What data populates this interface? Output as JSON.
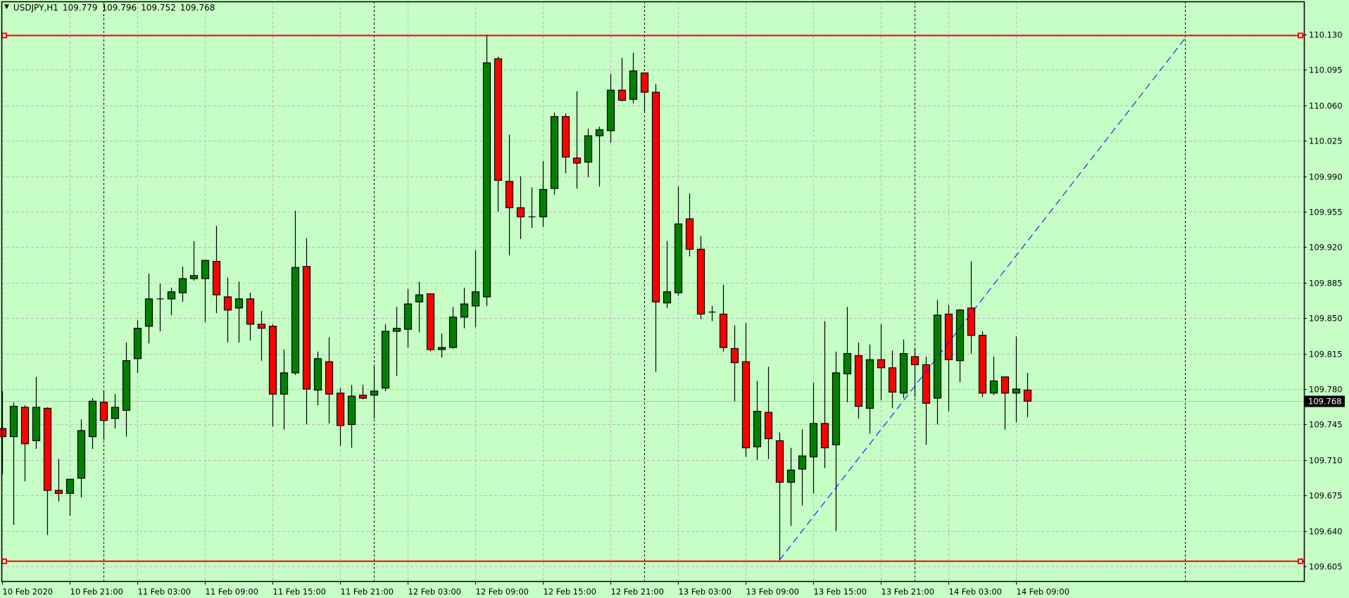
{
  "header": {
    "symbol_period": "USDJPY,H1",
    "open": "109.779",
    "high": "109.796",
    "low": "109.752",
    "close": "109.768",
    "menu_icon": "triangle-down-icon"
  },
  "colors": {
    "background": "#c6fec6",
    "bull_candle": "#008000",
    "bear_candle": "#ff0000",
    "grid": "#c0b8c0",
    "horizontal_lines": "#ff0000",
    "trendline": "#0000ff",
    "bid_line": "#b8b8b8",
    "price_label_bg": "#000000"
  },
  "chart_data": {
    "type": "candlestick",
    "symbol": "USDJPY",
    "timeframe": "H1",
    "ylim": [
      109.605,
      110.13
    ],
    "y_ticks": [
      "110.130",
      "110.095",
      "110.060",
      "110.025",
      "109.990",
      "109.955",
      "109.920",
      "109.885",
      "109.850",
      "109.815",
      "109.780",
      "109.745",
      "109.710",
      "109.675",
      "109.640",
      "109.605"
    ],
    "x_tick_labels": [
      "10 Feb 2020",
      "10 Feb 21:00",
      "11 Feb 03:00",
      "11 Feb 09:00",
      "11 Feb 15:00",
      "11 Feb 21:00",
      "12 Feb 03:00",
      "12 Feb 09:00",
      "12 Feb 15:00",
      "12 Feb 21:00",
      "13 Feb 03:00",
      "13 Feb 09:00",
      "13 Feb 15:00",
      "13 Feb 21:00",
      "14 Feb 03:00",
      "14 Feb 09:00"
    ],
    "grid": true,
    "period_separators": [
      "11 Feb 00:00",
      "12 Feb 00:00",
      "13 Feb 00:00",
      "14 Feb 00:00",
      "15 Feb 00:00"
    ],
    "current_price": "109.768",
    "columns": [
      "time",
      "open",
      "high",
      "low",
      "close"
    ],
    "candles": [
      [
        "10 Feb 15:00",
        109.741,
        109.778,
        109.696,
        109.733
      ],
      [
        "10 Feb 16:00",
        109.733,
        109.767,
        109.646,
        109.763
      ],
      [
        "10 Feb 17:00",
        109.762,
        109.764,
        109.689,
        109.726
      ],
      [
        "10 Feb 18:00",
        109.729,
        109.792,
        109.721,
        109.762
      ],
      [
        "10 Feb 19:00",
        109.761,
        109.762,
        109.636,
        109.68
      ],
      [
        "10 Feb 20:00",
        109.68,
        109.711,
        109.669,
        109.677
      ],
      [
        "10 Feb 21:00",
        109.677,
        109.691,
        109.655,
        109.691
      ],
      [
        "10 Feb 22:00",
        109.692,
        109.75,
        109.673,
        109.739
      ],
      [
        "10 Feb 23:00",
        109.733,
        109.771,
        109.721,
        109.768
      ],
      [
        "11 Feb 00:00",
        109.767,
        109.778,
        109.73,
        109.749
      ],
      [
        "11 Feb 01:00",
        109.751,
        109.775,
        109.741,
        109.762
      ],
      [
        "11 Feb 02:00",
        109.759,
        109.826,
        109.733,
        109.808
      ],
      [
        "11 Feb 03:00",
        109.81,
        109.848,
        109.796,
        109.84
      ],
      [
        "11 Feb 04:00",
        109.842,
        109.894,
        109.825,
        109.869
      ],
      [
        "11 Feb 05:00",
        109.869,
        109.884,
        109.837,
        109.869
      ],
      [
        "11 Feb 06:00",
        109.869,
        109.88,
        109.853,
        109.876
      ],
      [
        "11 Feb 07:00",
        109.875,
        109.901,
        109.866,
        109.889
      ],
      [
        "11 Feb 08:00",
        109.889,
        109.926,
        109.887,
        109.892
      ],
      [
        "11 Feb 09:00",
        109.889,
        109.907,
        109.846,
        109.907
      ],
      [
        "11 Feb 10:00",
        109.906,
        109.941,
        109.855,
        109.873
      ],
      [
        "11 Feb 11:00",
        109.871,
        109.89,
        109.826,
        109.858
      ],
      [
        "11 Feb 12:00",
        109.86,
        109.886,
        109.826,
        109.869
      ],
      [
        "11 Feb 13:00",
        109.869,
        109.875,
        109.828,
        109.844
      ],
      [
        "11 Feb 14:00",
        109.844,
        109.857,
        109.808,
        109.84
      ],
      [
        "11 Feb 15:00",
        109.842,
        109.844,
        109.743,
        109.775
      ],
      [
        "11 Feb 16:00",
        109.775,
        109.819,
        109.74,
        109.796
      ],
      [
        "11 Feb 17:00",
        109.796,
        109.956,
        109.794,
        109.9
      ],
      [
        "11 Feb 18:00",
        109.901,
        109.929,
        109.745,
        109.78
      ],
      [
        "11 Feb 19:00",
        109.779,
        109.817,
        109.764,
        109.81
      ],
      [
        "11 Feb 20:00",
        109.807,
        109.831,
        109.746,
        109.775
      ],
      [
        "11 Feb 21:00",
        109.776,
        109.781,
        109.724,
        109.744
      ],
      [
        "11 Feb 22:00",
        109.745,
        109.784,
        109.722,
        109.773
      ],
      [
        "11 Feb 23:00",
        109.774,
        109.784,
        109.77,
        109.771
      ],
      [
        "12 Feb 00:00",
        109.774,
        109.803,
        109.751,
        109.778
      ],
      [
        "12 Feb 01:00",
        109.781,
        109.844,
        109.778,
        109.837
      ],
      [
        "12 Feb 02:00",
        109.837,
        109.861,
        109.793,
        109.84
      ],
      [
        "12 Feb 03:00",
        109.839,
        109.879,
        109.821,
        109.864
      ],
      [
        "12 Feb 04:00",
        109.866,
        109.886,
        109.836,
        109.873
      ],
      [
        "12 Feb 05:00",
        109.874,
        109.874,
        109.817,
        109.819
      ],
      [
        "12 Feb 06:00",
        109.819,
        109.835,
        109.811,
        109.821
      ],
      [
        "12 Feb 07:00",
        109.821,
        109.861,
        109.82,
        109.851
      ],
      [
        "12 Feb 08:00",
        109.851,
        109.88,
        109.84,
        109.864
      ],
      [
        "12 Feb 09:00",
        109.862,
        109.917,
        109.841,
        109.876
      ],
      [
        "12 Feb 10:00",
        109.871,
        110.13,
        109.862,
        110.102
      ],
      [
        "12 Feb 11:00",
        110.106,
        110.108,
        109.955,
        109.986
      ],
      [
        "12 Feb 12:00",
        109.985,
        110.031,
        109.912,
        109.959
      ],
      [
        "12 Feb 13:00",
        109.959,
        109.99,
        109.928,
        109.95
      ],
      [
        "12 Feb 14:00",
        109.95,
        109.979,
        109.939,
        109.95
      ],
      [
        "12 Feb 15:00",
        109.95,
        110.005,
        109.94,
        109.977
      ],
      [
        "12 Feb 16:00",
        109.978,
        110.053,
        109.972,
        110.049
      ],
      [
        "12 Feb 17:00",
        110.049,
        110.052,
        109.993,
        110.009
      ],
      [
        "12 Feb 18:00",
        110.008,
        110.074,
        109.978,
        110.003
      ],
      [
        "12 Feb 19:00",
        110.004,
        110.037,
        109.989,
        110.03
      ],
      [
        "12 Feb 20:00",
        110.03,
        110.039,
        109.98,
        110.036
      ],
      [
        "12 Feb 21:00",
        110.035,
        110.091,
        110.023,
        110.075
      ],
      [
        "12 Feb 22:00",
        110.075,
        110.107,
        110.064,
        110.065
      ],
      [
        "12 Feb 23:00",
        110.066,
        110.112,
        110.062,
        110.094
      ],
      [
        "13 Feb 00:00",
        110.092,
        110.092,
        110.054,
        110.073
      ],
      [
        "13 Feb 01:00",
        110.073,
        110.081,
        109.797,
        109.866
      ],
      [
        "13 Feb 02:00",
        109.865,
        109.926,
        109.86,
        109.876
      ],
      [
        "13 Feb 03:00",
        109.875,
        109.98,
        109.872,
        109.943
      ],
      [
        "13 Feb 04:00",
        109.948,
        109.973,
        109.911,
        109.918
      ],
      [
        "13 Feb 05:00",
        109.918,
        109.931,
        109.849,
        109.854
      ],
      [
        "13 Feb 06:00",
        109.856,
        109.862,
        109.847,
        109.856
      ],
      [
        "13 Feb 07:00",
        109.854,
        109.883,
        109.817,
        109.821
      ],
      [
        "13 Feb 08:00",
        109.82,
        109.843,
        109.768,
        109.806
      ],
      [
        "13 Feb 09:00",
        109.807,
        109.845,
        109.713,
        109.722
      ],
      [
        "13 Feb 10:00",
        109.723,
        109.788,
        109.71,
        109.758
      ],
      [
        "13 Feb 11:00",
        109.757,
        109.802,
        109.711,
        109.731
      ],
      [
        "13 Feb 12:00",
        109.729,
        109.737,
        109.611,
        109.688
      ],
      [
        "13 Feb 13:00",
        109.688,
        109.722,
        109.645,
        109.7
      ],
      [
        "13 Feb 14:00",
        109.701,
        109.74,
        109.665,
        109.714
      ],
      [
        "13 Feb 15:00",
        109.713,
        109.786,
        109.677,
        109.746
      ],
      [
        "13 Feb 16:00",
        109.746,
        109.847,
        109.702,
        109.722
      ],
      [
        "13 Feb 17:00",
        109.725,
        109.817,
        109.64,
        109.796
      ],
      [
        "13 Feb 18:00",
        109.795,
        109.861,
        109.767,
        109.815
      ],
      [
        "13 Feb 19:00",
        109.813,
        109.826,
        109.751,
        109.763
      ],
      [
        "13 Feb 20:00",
        109.761,
        109.824,
        109.736,
        109.809
      ],
      [
        "13 Feb 21:00",
        109.809,
        109.844,
        109.769,
        109.801
      ],
      [
        "13 Feb 22:00",
        109.801,
        109.818,
        109.761,
        109.777
      ],
      [
        "13 Feb 23:00",
        109.776,
        109.829,
        109.771,
        109.815
      ],
      [
        "14 Feb 00:00",
        109.812,
        109.82,
        109.772,
        109.804
      ],
      [
        "14 Feb 01:00",
        109.804,
        109.812,
        109.725,
        109.766
      ],
      [
        "14 Feb 02:00",
        109.771,
        109.868,
        109.745,
        109.853
      ],
      [
        "14 Feb 03:00",
        109.854,
        109.863,
        109.758,
        109.809
      ],
      [
        "14 Feb 04:00",
        109.808,
        109.859,
        109.787,
        109.858
      ],
      [
        "14 Feb 05:00",
        109.86,
        109.906,
        109.815,
        109.833
      ],
      [
        "14 Feb 06:00",
        109.833,
        109.837,
        109.772,
        109.776
      ],
      [
        "14 Feb 07:00",
        109.776,
        109.812,
        109.774,
        109.788
      ],
      [
        "14 Feb 08:00",
        109.792,
        109.792,
        109.74,
        109.776
      ],
      [
        "14 Feb 09:00",
        109.776,
        109.832,
        109.747,
        109.78
      ],
      [
        "14 Feb 10:00",
        109.779,
        109.796,
        109.752,
        109.768
      ]
    ],
    "horizontal_lines": [
      110.129,
      109.61
    ],
    "trendline": {
      "from": {
        "time": "13 Feb 12:00",
        "price": 109.611
      },
      "to": {
        "time": "15 Feb 00:00",
        "price": 110.126
      }
    }
  }
}
